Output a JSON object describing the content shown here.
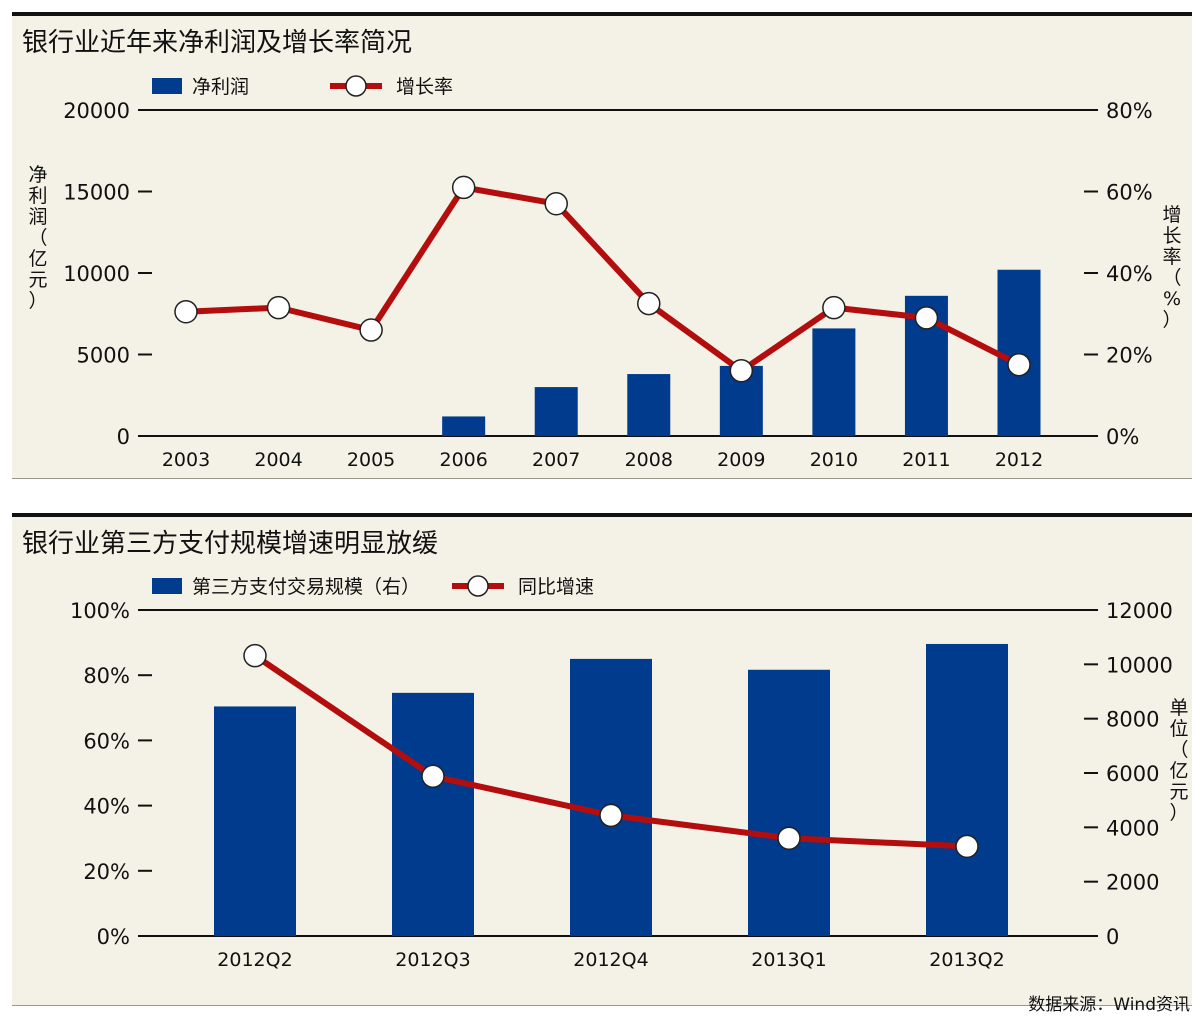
{
  "source": "数据来源：Wind资讯",
  "chart_data": [
    {
      "type": "bar+line",
      "title": "银行业近年来净利润及增长率简况",
      "categories": [
        "2003",
        "2004",
        "2005",
        "2006",
        "2007",
        "2008",
        "2009",
        "2010",
        "2011",
        "2012"
      ],
      "bar_series": {
        "name": "净利润",
        "color": "#003b8e",
        "values": [
          null,
          null,
          null,
          1200,
          3000,
          3800,
          4300,
          6600,
          8600,
          10200
        ]
      },
      "line_series": {
        "name": "增长率",
        "color": "#b30d0d",
        "values": [
          30.5,
          31.5,
          26,
          61,
          57,
          32.5,
          16,
          31.5,
          29,
          17.5
        ]
      },
      "y_left": {
        "label": "净利润（亿元）",
        "min": 0,
        "max": 20000,
        "ticks": [
          "0",
          "5000",
          "10000",
          "15000",
          "20000"
        ]
      },
      "y_right": {
        "label": "增长率（%）",
        "min": 0,
        "max": 80,
        "ticks": [
          "0%",
          "20%",
          "40%",
          "60%",
          "80%"
        ]
      },
      "legend": "top-left"
    },
    {
      "type": "bar+line",
      "title": "银行业第三方支付规模增速明显放缓",
      "categories": [
        "2012Q2",
        "2012Q3",
        "2012Q4",
        "2013Q1",
        "2013Q2"
      ],
      "bar_series": {
        "name": "第三方支付交易规模（右）",
        "color": "#003b8e",
        "values": [
          8450,
          8950,
          10200,
          9800,
          10750
        ]
      },
      "line_series": {
        "name": "同比增速",
        "color": "#b30d0d",
        "values": [
          86,
          49,
          37,
          30,
          27.5
        ]
      },
      "y_left": {
        "label": "",
        "min": 0,
        "max": 100,
        "ticks": [
          "0%",
          "20%",
          "40%",
          "60%",
          "80%",
          "100%"
        ]
      },
      "y_right": {
        "label": "单位（亿元）",
        "min": 0,
        "max": 12000,
        "ticks": [
          "0",
          "2000",
          "4000",
          "6000",
          "8000",
          "10000",
          "12000"
        ]
      },
      "legend": "top-left"
    }
  ]
}
